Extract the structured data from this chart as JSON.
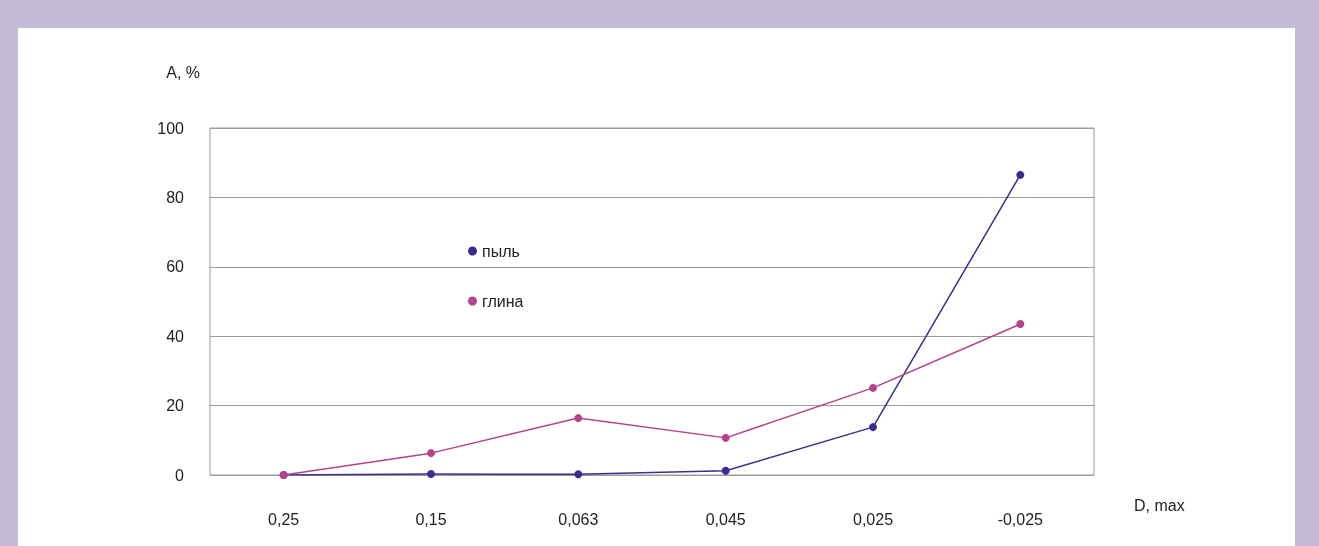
{
  "chart_data": {
    "type": "line",
    "xlabel": "D, max",
    "ylabel": "A, %",
    "categories": [
      "0,25",
      "0,15",
      "0,063",
      "0,045",
      "0,025",
      "-0,025"
    ],
    "series": [
      {
        "name": "пыль",
        "color": "#3a2d91",
        "values": [
          0,
          0.3,
          0.2,
          1.2,
          13.8,
          86.5
        ]
      },
      {
        "name": "глина",
        "color": "#b5428a",
        "values": [
          0,
          6.3,
          16.4,
          10.7,
          25.1,
          43.5
        ]
      }
    ],
    "ylim": [
      0,
      100
    ],
    "yticks": [
      0,
      20,
      40,
      60,
      80,
      100
    ],
    "grid": "y",
    "legend": "center left",
    "marker": "circle",
    "line_style": "solid"
  }
}
